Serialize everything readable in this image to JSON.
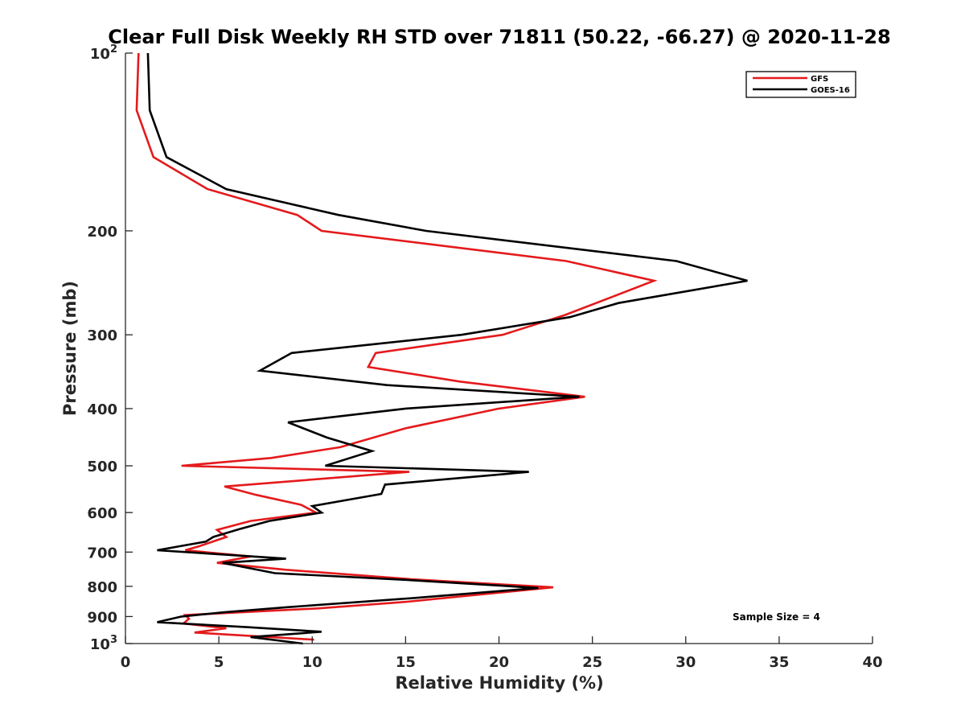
{
  "chart_data": {
    "type": "line",
    "title": "Clear Full Disk Weekly RH STD over 71811 (50.22, -66.27) @ 2020-11-28",
    "xlabel": "Relative Humidity (%)",
    "ylabel": "Pressure (mb)",
    "xlim": [
      0,
      40
    ],
    "ylim": [
      100,
      1000
    ],
    "yscale": "log",
    "y_reversed": true,
    "x_ticks": [
      "0",
      "5",
      "10",
      "15",
      "20",
      "25",
      "30",
      "35",
      "40"
    ],
    "y_ticks": [
      {
        "value": 100,
        "base": "10",
        "exp": "2"
      },
      {
        "value": 200,
        "label": "200"
      },
      {
        "value": 300,
        "label": "300"
      },
      {
        "value": 400,
        "label": "400"
      },
      {
        "value": 500,
        "label": "500"
      },
      {
        "value": 600,
        "label": "600"
      },
      {
        "value": 700,
        "label": "700"
      },
      {
        "value": 800,
        "label": "800"
      },
      {
        "value": 900,
        "label": "900"
      },
      {
        "value": 1000,
        "base": "10",
        "exp": "3"
      }
    ],
    "legend_position": "top-right",
    "annotation": "Sample Size = 4",
    "series": [
      {
        "name": "GFS",
        "color": "#e41a1c",
        "points": [
          [
            0.7,
            100
          ],
          [
            0.6,
            125
          ],
          [
            1.5,
            150
          ],
          [
            4.4,
            170
          ],
          [
            9.2,
            188
          ],
          [
            10.5,
            200
          ],
          [
            23.6,
            225
          ],
          [
            28.3,
            243
          ],
          [
            23.5,
            278
          ],
          [
            20.2,
            300
          ],
          [
            13.4,
            322
          ],
          [
            13.0,
            340
          ],
          [
            17.9,
            360
          ],
          [
            24.6,
            382
          ],
          [
            20.0,
            400
          ],
          [
            15.0,
            432
          ],
          [
            11.5,
            465
          ],
          [
            7.8,
            485
          ],
          [
            3.0,
            500
          ],
          [
            15.2,
            512
          ],
          [
            5.3,
            542
          ],
          [
            7.0,
            560
          ],
          [
            9.4,
            582
          ],
          [
            10.2,
            600
          ],
          [
            6.7,
            620
          ],
          [
            4.9,
            642
          ],
          [
            5.4,
            660
          ],
          [
            3.9,
            685
          ],
          [
            3.2,
            695
          ],
          [
            6.7,
            712
          ],
          [
            4.9,
            730
          ],
          [
            8.6,
            750
          ],
          [
            15.3,
            778
          ],
          [
            22.9,
            803
          ],
          [
            15.0,
            850
          ],
          [
            10.3,
            872
          ],
          [
            3.2,
            895
          ],
          [
            3.4,
            908
          ],
          [
            3.1,
            925
          ],
          [
            5.4,
            942
          ],
          [
            3.7,
            958
          ],
          [
            10.1,
            985
          ]
        ]
      },
      {
        "name": "GOES-16",
        "color": "#000000",
        "points": [
          [
            1.2,
            100
          ],
          [
            1.3,
            125
          ],
          [
            2.2,
            150
          ],
          [
            5.4,
            170
          ],
          [
            11.4,
            188
          ],
          [
            16.1,
            200
          ],
          [
            29.5,
            225
          ],
          [
            33.3,
            243
          ],
          [
            26.4,
            265
          ],
          [
            23.8,
            280
          ],
          [
            18.0,
            300
          ],
          [
            8.9,
            322
          ],
          [
            7.2,
            345
          ],
          [
            14.0,
            365
          ],
          [
            24.3,
            382
          ],
          [
            15.0,
            400
          ],
          [
            8.7,
            422
          ],
          [
            10.8,
            448
          ],
          [
            13.2,
            472
          ],
          [
            10.7,
            500
          ],
          [
            21.6,
            512
          ],
          [
            13.9,
            538
          ],
          [
            13.7,
            558
          ],
          [
            10.0,
            585
          ],
          [
            10.5,
            600
          ],
          [
            7.7,
            620
          ],
          [
            6.1,
            640
          ],
          [
            4.7,
            660
          ],
          [
            4.3,
            672
          ],
          [
            1.7,
            695
          ],
          [
            8.6,
            718
          ],
          [
            5.2,
            730
          ],
          [
            8.0,
            760
          ],
          [
            15.0,
            780
          ],
          [
            22.1,
            805
          ],
          [
            15.3,
            838
          ],
          [
            8.6,
            868
          ],
          [
            5.3,
            885
          ],
          [
            3.0,
            900
          ],
          [
            1.7,
            920
          ],
          [
            6.5,
            938
          ],
          [
            10.5,
            955
          ],
          [
            6.7,
            975
          ],
          [
            9.5,
            1000
          ]
        ]
      }
    ]
  }
}
